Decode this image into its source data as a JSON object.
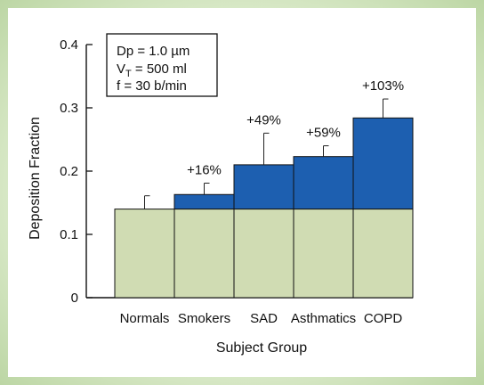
{
  "chart_data": {
    "type": "bar",
    "categories": [
      "Normals",
      "Smokers",
      "SAD",
      "Asthmatics",
      "COPD"
    ],
    "series": [
      {
        "values": [
          0.14,
          0.14,
          0.14,
          0.14,
          0.14
        ]
      },
      {
        "values": [
          0,
          0.023,
          0.07,
          0.083,
          0.144
        ]
      }
    ],
    "totals": [
      0.14,
      0.163,
      0.21,
      0.223,
      0.284
    ],
    "error_upper": [
      0.161,
      0.181,
      0.26,
      0.24,
      0.314
    ],
    "annotations": [
      "",
      "+16%",
      "+49%",
      "+59%",
      "+103%"
    ],
    "xlabel": "Subject Group",
    "ylabel": "Deposition Fraction",
    "ylim": [
      0,
      0.4
    ],
    "yticks": [
      0,
      0.1,
      0.2,
      0.3,
      0.4
    ],
    "ytick_labels": [
      "0",
      "0.1",
      "0.2",
      "0.3",
      "0.4"
    ],
    "legend_box": {
      "line1": "Dp = 1.0 µm",
      "line2_main": "V",
      "line2_sub": "T",
      "line2_rest": " = 500 ml",
      "line3": "f = 30 b/min"
    },
    "colors": {
      "base": "#d0dcb3",
      "increase": "#1d5fb0",
      "frame_light": "#eef5e6",
      "frame_dark": "#bcd6a4"
    }
  }
}
